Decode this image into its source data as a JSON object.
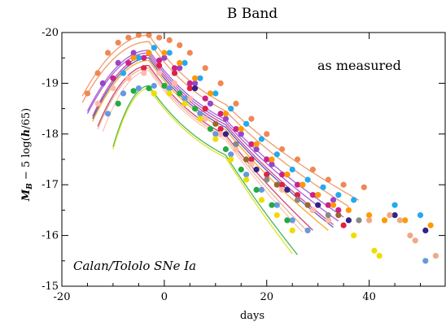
{
  "chart_data": {
    "type": "scatter",
    "title": "B Band",
    "xlabel": "days",
    "ylabel_main": "M",
    "ylabel_sub": "B",
    "ylabel_mid": " − 5 log(",
    "ylabel_h": "h",
    "ylabel_tail": "/65)",
    "xlim": [
      -20,
      55
    ],
    "ylim": [
      -15,
      -20
    ],
    "x_ticks": [
      -20,
      0,
      20,
      40
    ],
    "y_ticks": [
      -20,
      -19,
      -18,
      -17,
      -16,
      -15
    ],
    "annotations": [
      "as measured",
      "Calan/Tololo SNe Ia"
    ],
    "grid": false,
    "template_curves": [
      {
        "color": "#ee8855",
        "peak": -19.95,
        "t0": -16,
        "tw": 7,
        "slope": 0.055,
        "xend": 38
      },
      {
        "color": "#ee8855",
        "peak": -19.82,
        "t0": -16,
        "tw": 7,
        "slope": 0.06,
        "xend": 36
      },
      {
        "color": "#9944cc",
        "peak": -19.65,
        "t0": -15,
        "tw": 8,
        "slope": 0.065,
        "xend": 35
      },
      {
        "color": "#9944cc",
        "peak": -19.6,
        "t0": -15,
        "tw": 8,
        "slope": 0.07,
        "xend": 34
      },
      {
        "color": "#cc2288",
        "peak": -19.55,
        "t0": -14,
        "tw": 8,
        "slope": 0.075,
        "xend": 33
      },
      {
        "color": "#3344aa",
        "peak": -19.5,
        "t0": -14,
        "tw": 8,
        "slope": 0.075,
        "xend": 33
      },
      {
        "color": "#ff9900",
        "peak": -19.45,
        "t0": -14,
        "tw": 8,
        "slope": 0.08,
        "xend": 32
      },
      {
        "color": "#cc2255",
        "peak": -19.35,
        "t0": -13,
        "tw": 9,
        "slope": 0.09,
        "xend": 29
      },
      {
        "color": "#ddaa88",
        "peak": -19.3,
        "t0": -13,
        "tw": 9,
        "slope": 0.095,
        "xend": 28
      },
      {
        "color": "#ffbbaa",
        "peak": -19.25,
        "t0": -12,
        "tw": 9,
        "slope": 0.1,
        "xend": 27
      },
      {
        "color": "#22aa44",
        "peak": -18.95,
        "t0": -10,
        "tw": 10,
        "slope": 0.12,
        "xend": 26
      },
      {
        "color": "#dddd00",
        "peak": -18.9,
        "t0": -10,
        "tw": 10,
        "slope": 0.125,
        "xend": 25
      }
    ],
    "series": [
      {
        "color": "#ee8855",
        "x": [
          -15,
          -13,
          -11,
          -9,
          -7,
          -5,
          -3,
          -1,
          1,
          3,
          5,
          8,
          11,
          14,
          17,
          20,
          23,
          26,
          29,
          32,
          35,
          39
        ],
        "y": [
          -18.8,
          -19.2,
          -19.6,
          -19.8,
          -19.9,
          -19.95,
          -19.95,
          -19.9,
          -19.85,
          -19.75,
          -19.6,
          -19.3,
          -19.0,
          -18.6,
          -18.3,
          -18.0,
          -17.7,
          -17.5,
          -17.3,
          -17.1,
          -17.0,
          -16.95
        ]
      },
      {
        "color": "#9944cc",
        "x": [
          -12,
          -9,
          -6,
          -3,
          0,
          3,
          6,
          9,
          12,
          15,
          18,
          21,
          24,
          27,
          30,
          33
        ],
        "y": [
          -19.0,
          -19.4,
          -19.6,
          -19.6,
          -19.5,
          -19.3,
          -19.0,
          -18.6,
          -18.3,
          -18.0,
          -17.7,
          -17.4,
          -17.2,
          -17.0,
          -16.8,
          -16.7
        ]
      },
      {
        "color": "#cc2288",
        "x": [
          -10,
          -7,
          -4,
          -1,
          2,
          5,
          8,
          11,
          14,
          17,
          20,
          23,
          26,
          29,
          32,
          34
        ],
        "y": [
          -19.1,
          -19.4,
          -19.5,
          -19.45,
          -19.3,
          -19.0,
          -18.7,
          -18.4,
          -18.1,
          -17.8,
          -17.5,
          -17.2,
          -17.0,
          -16.8,
          -16.6,
          -16.5
        ]
      },
      {
        "color": "#22aaee",
        "x": [
          -8,
          -5,
          -2,
          1,
          4,
          7,
          10,
          13,
          16,
          19,
          22,
          25,
          28,
          31,
          34,
          37,
          45,
          50
        ],
        "y": [
          -19.2,
          -19.5,
          -19.7,
          -19.6,
          -19.4,
          -19.1,
          -18.8,
          -18.5,
          -18.2,
          -17.9,
          -17.6,
          -17.3,
          -17.1,
          -16.95,
          -16.8,
          -16.7,
          -16.6,
          -16.4
        ]
      },
      {
        "color": "#ff9900",
        "x": [
          -6,
          -3,
          0,
          3,
          6,
          9,
          12,
          15,
          18,
          21,
          24,
          27,
          30,
          33,
          36,
          40,
          43,
          47,
          52
        ],
        "y": [
          -19.5,
          -19.6,
          -19.6,
          -19.4,
          -19.1,
          -18.8,
          -18.4,
          -18.1,
          -17.8,
          -17.5,
          -17.2,
          -17.0,
          -16.8,
          -16.6,
          -16.5,
          -16.4,
          -16.3,
          -16.3,
          -16.2
        ]
      },
      {
        "color": "#dd2244",
        "x": [
          -4,
          -1,
          2,
          5,
          8,
          11,
          14,
          17,
          20,
          23,
          26,
          29,
          32,
          35
        ],
        "y": [
          -19.3,
          -19.35,
          -19.2,
          -18.9,
          -18.5,
          -18.1,
          -17.8,
          -17.5,
          -17.2,
          -17.0,
          -16.8,
          -16.5,
          -16.3,
          -16.2
        ]
      },
      {
        "color": "#ffbbaa",
        "x": [
          -13,
          -10,
          -7,
          -4,
          -1,
          2,
          5,
          8,
          11,
          14,
          17,
          20,
          23,
          26,
          29,
          32
        ],
        "y": [
          -18.6,
          -18.9,
          -19.1,
          -19.2,
          -19.2,
          -19.0,
          -18.7,
          -18.3,
          -18.0,
          -17.7,
          -17.4,
          -17.1,
          -16.9,
          -16.7,
          -16.5,
          -16.3
        ]
      },
      {
        "color": "#6699dd",
        "x": [
          -11,
          -8,
          -5,
          -2,
          1,
          4,
          7,
          10,
          13,
          16,
          19,
          22,
          25,
          28,
          51
        ],
        "y": [
          -18.4,
          -18.8,
          -18.9,
          -18.95,
          -18.9,
          -18.7,
          -18.4,
          -18.0,
          -17.6,
          -17.2,
          -16.9,
          -16.6,
          -16.3,
          -16.1,
          -15.5
        ]
      },
      {
        "color": "#22aa44",
        "x": [
          -9,
          -6,
          -3,
          0,
          3,
          6,
          9,
          12,
          15,
          18,
          21,
          24
        ],
        "y": [
          -18.6,
          -18.85,
          -18.9,
          -18.95,
          -18.8,
          -18.5,
          -18.1,
          -17.7,
          -17.3,
          -16.9,
          -16.6,
          -16.3
        ]
      },
      {
        "color": "#eedd00",
        "x": [
          -2,
          1,
          4,
          7,
          10,
          13,
          16,
          19,
          22,
          25,
          37,
          41,
          42
        ],
        "y": [
          -18.8,
          -18.8,
          -18.6,
          -18.3,
          -17.9,
          -17.5,
          -17.1,
          -16.7,
          -16.4,
          -16.1,
          -16.0,
          -15.7,
          -15.6
        ]
      },
      {
        "color": "#332288",
        "x": [
          6,
          12,
          18,
          24,
          30,
          36,
          45,
          51
        ],
        "y": [
          -18.9,
          -18.0,
          -17.3,
          -16.9,
          -16.6,
          -16.3,
          -16.4,
          -16.1
        ]
      },
      {
        "color": "#888888",
        "x": [
          14,
          20,
          26,
          32,
          38
        ],
        "y": [
          -17.8,
          -17.1,
          -16.7,
          -16.4,
          -16.3
        ]
      },
      {
        "color": "#996633",
        "x": [
          10,
          16,
          22,
          28,
          34
        ],
        "y": [
          -18.2,
          -17.5,
          -17.0,
          -16.6,
          -16.4
        ]
      },
      {
        "color": "#eeaa88",
        "x": [
          40,
          44,
          46,
          48,
          49,
          53
        ],
        "y": [
          -16.3,
          -16.4,
          -16.3,
          -16.0,
          -15.9,
          -15.6
        ]
      }
    ]
  }
}
